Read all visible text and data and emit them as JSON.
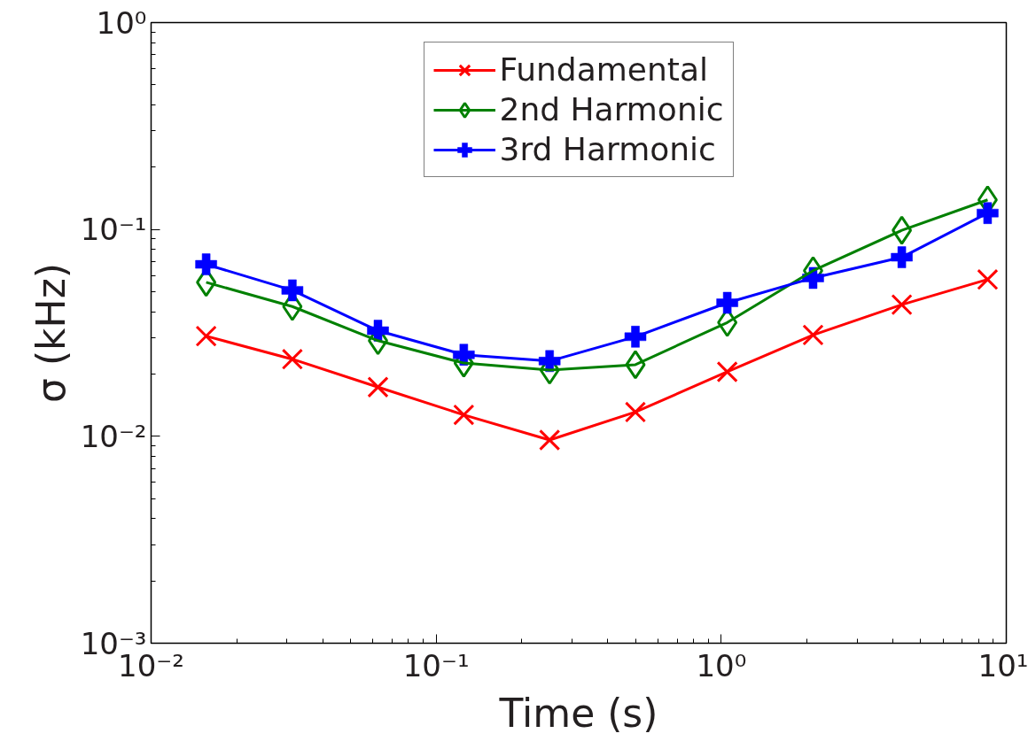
{
  "chart_data": {
    "type": "line",
    "xlabel": "Time (s)",
    "ylabel": "σ (kHz)",
    "log": "xy",
    "x": [
      0.0156,
      0.0313,
      0.0625,
      0.125,
      0.25,
      0.5,
      1.05,
      2.1,
      4.3,
      8.6
    ],
    "series": [
      {
        "name": "Fundamental",
        "color": "#ff0000",
        "marker": "cross",
        "values": [
          0.0305,
          0.0236,
          0.0173,
          0.0127,
          0.0096,
          0.0131,
          0.0205,
          0.0309,
          0.0433,
          0.0573
        ]
      },
      {
        "name": "2nd Harmonic",
        "color": "#008000",
        "marker": "diamond",
        "values": [
          0.0555,
          0.0424,
          0.029,
          0.0226,
          0.0209,
          0.0222,
          0.0355,
          0.0632,
          0.099,
          0.139
        ]
      },
      {
        "name": "3rd Harmonic",
        "color": "#0000ff",
        "marker": "cross",
        "values": [
          0.0678,
          0.0508,
          0.0324,
          0.0248,
          0.0231,
          0.0303,
          0.0442,
          0.0583,
          0.0734,
          0.12
        ]
      }
    ],
    "xlim": [
      0.01,
      10
    ],
    "ylim": [
      0.001,
      1
    ],
    "xticks": [
      {
        "value": 0.01,
        "label": "10⁻²"
      },
      {
        "value": 0.1,
        "label": "10⁻¹"
      },
      {
        "value": 1,
        "label": "10⁰"
      },
      {
        "value": 10,
        "label": "10¹"
      }
    ],
    "yticks": [
      {
        "value": 0.001,
        "label": "10⁻³"
      },
      {
        "value": 0.01,
        "label": "10⁻²"
      },
      {
        "value": 0.1,
        "label": "10⁻¹"
      },
      {
        "value": 1,
        "label": "10⁰"
      }
    ],
    "grid": false,
    "legend": "top",
    "line_style": "solid"
  }
}
